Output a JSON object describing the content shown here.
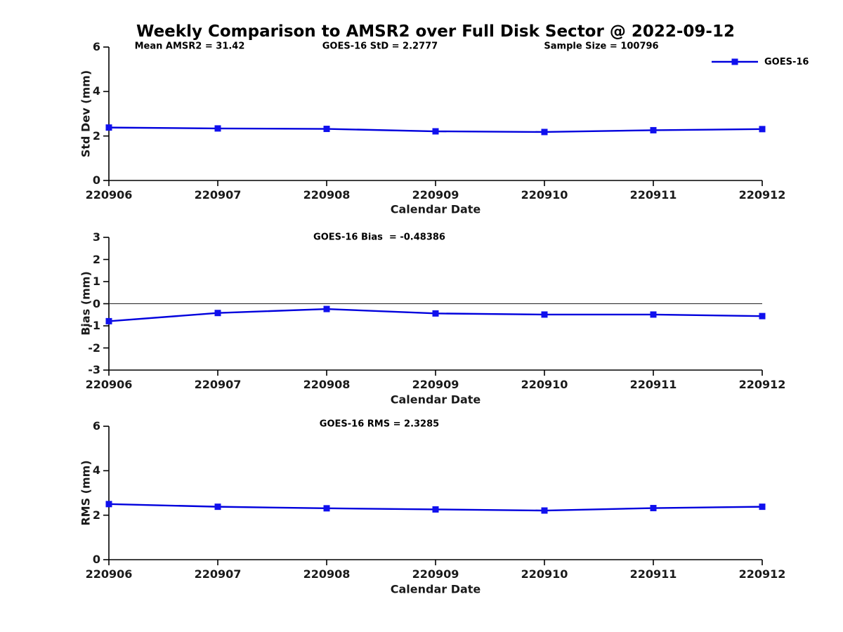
{
  "title": "Weekly Comparison to AMSR2 over Full Disk Sector @ 2022-09-12",
  "legend": {
    "label": "GOES-16"
  },
  "colors": {
    "background": "#ffffff",
    "line": "#0000dd",
    "marker": "#1010ee",
    "axis": "#000000",
    "tick_label": "#1a1a1a",
    "zero_line": "#222222",
    "text": "#000000"
  },
  "chart_data": [
    {
      "type": "line",
      "panel": "std-dev",
      "annotations": [
        "Mean AMSR2 = 31.42",
        "GOES-16 StD = 2.2777",
        "Sample Size = 100796"
      ],
      "categories": [
        "220906",
        "220907",
        "220908",
        "220909",
        "220910",
        "220911",
        "220912"
      ],
      "series": [
        {
          "name": "GOES-16",
          "values": [
            2.38,
            2.34,
            2.32,
            2.21,
            2.18,
            2.26,
            2.31
          ]
        }
      ],
      "xlabel": "Calendar Date",
      "ylabel": "Std Dev (mm)",
      "ylim": [
        0,
        6
      ],
      "yticks": [
        0,
        2,
        4,
        6
      ],
      "zero_line": false,
      "grid": false,
      "legend_position": "top-right"
    },
    {
      "type": "line",
      "panel": "bias",
      "annotations": [
        "GOES-16 Bias  = -0.48386"
      ],
      "categories": [
        "220906",
        "220907",
        "220908",
        "220909",
        "220910",
        "220911",
        "220912"
      ],
      "series": [
        {
          "name": "GOES-16",
          "values": [
            -0.79,
            -0.42,
            -0.24,
            -0.44,
            -0.49,
            -0.49,
            -0.56
          ]
        }
      ],
      "xlabel": "Calendar Date",
      "ylabel": "Bias (mm)",
      "ylim": [
        -3,
        3
      ],
      "yticks": [
        -3,
        -2,
        -1,
        0,
        1,
        2,
        3
      ],
      "zero_line": true,
      "grid": false
    },
    {
      "type": "line",
      "panel": "rms",
      "annotations": [
        "GOES-16 RMS = 2.3285"
      ],
      "categories": [
        "220906",
        "220907",
        "220908",
        "220909",
        "220910",
        "220911",
        "220912"
      ],
      "series": [
        {
          "name": "GOES-16",
          "values": [
            2.5,
            2.38,
            2.31,
            2.26,
            2.21,
            2.32,
            2.38
          ]
        }
      ],
      "xlabel": "Calendar Date",
      "ylabel": "RMS (mm)",
      "ylim": [
        0,
        6
      ],
      "yticks": [
        0,
        2,
        4,
        6
      ],
      "zero_line": false,
      "grid": false
    }
  ]
}
